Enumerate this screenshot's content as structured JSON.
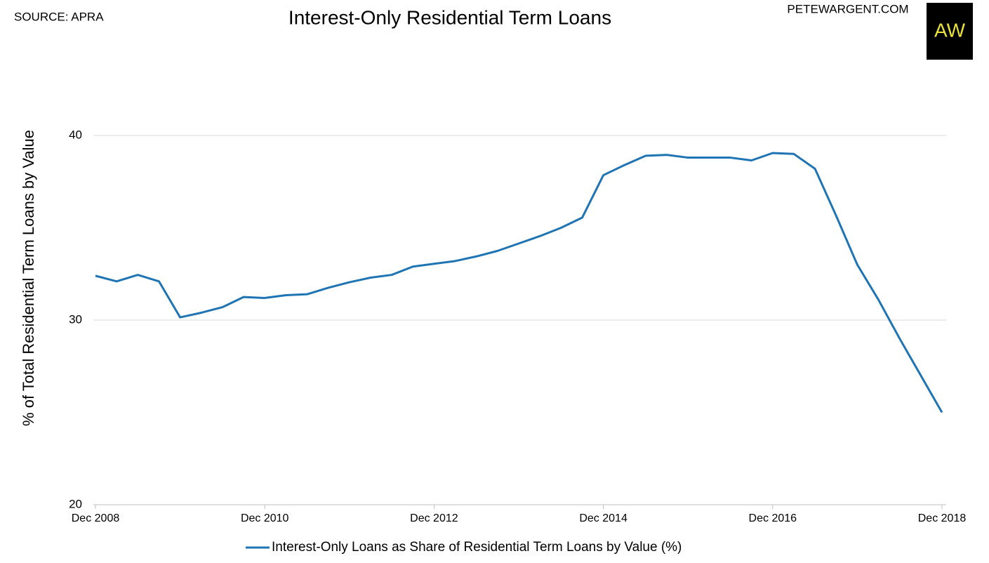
{
  "source": "SOURCE: APRA",
  "site": "PETEWARGENT.COM",
  "logo": "AW",
  "chart_data": {
    "type": "line",
    "title": "Interest-Only Residential Term Loans",
    "y_label": "% of Total Residential Term Loans by Value",
    "categories": [
      "Dec 2008",
      null,
      null,
      null,
      null,
      null,
      null,
      null,
      "Dec 2010",
      null,
      null,
      null,
      null,
      null,
      null,
      null,
      "Dec 2012",
      null,
      null,
      null,
      null,
      null,
      null,
      null,
      "Dec 2014",
      null,
      null,
      null,
      null,
      null,
      null,
      null,
      "Dec 2016",
      null,
      null,
      null,
      null,
      null,
      null,
      null,
      "Dec 2018"
    ],
    "series": [
      {
        "name": "Interest-Only Loans as Share of Residential Term Loans by Value (%)",
        "color": "#1f74b4",
        "values": [
          32.4,
          32.1,
          32.45,
          32.1,
          30.15,
          30.4,
          30.7,
          31.25,
          31.2,
          31.35,
          31.4,
          31.75,
          32.05,
          32.3,
          32.45,
          32.9,
          33.05,
          33.2,
          33.45,
          33.75,
          34.15,
          34.55,
          35.0,
          35.55,
          37.85,
          38.4,
          38.9,
          38.95,
          38.8,
          38.8,
          38.8,
          38.65,
          39.05,
          39.0,
          38.2,
          35.65,
          33.0,
          31.1,
          29.0,
          27.0,
          25.0
        ]
      }
    ],
    "ylim": [
      20,
      40
    ],
    "yticks": [
      20,
      30,
      40
    ],
    "grid": true,
    "legend": "bottom"
  }
}
